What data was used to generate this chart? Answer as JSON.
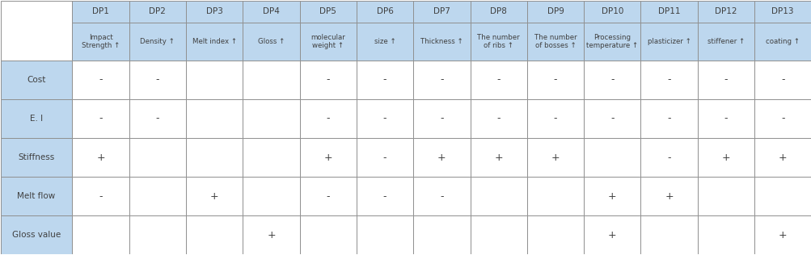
{
  "col_headers_row1": [
    "DP1",
    "DP2",
    "DP3",
    "DP4",
    "DP5",
    "DP6",
    "DP7",
    "DP8",
    "DP9",
    "DP10",
    "DP11",
    "DP12",
    "DP13"
  ],
  "col_headers_row2": [
    "Impact\nStrength ↑",
    "Density ↑",
    "Melt index ↑",
    "Gloss ↑",
    "molecular\nweight ↑",
    "size ↑",
    "Thickness ↑",
    "The number\nof ribs ↑",
    "The number\nof bosses ↑",
    "Processing\ntemperature ↑",
    "plasticizer ↑",
    "stiffener ↑",
    "coating ↑"
  ],
  "row_headers": [
    "Cost",
    "E. I",
    "Stiffness",
    "Melt flow",
    "Gloss value"
  ],
  "cell_data": [
    [
      "-",
      "-",
      "",
      "",
      "-",
      "-",
      "-",
      "-",
      "-",
      "-",
      "-",
      "-",
      "-"
    ],
    [
      "-",
      "-",
      "",
      "",
      "-",
      "-",
      "-",
      "-",
      "-",
      "-",
      "-",
      "-",
      "-"
    ],
    [
      "+",
      "",
      "",
      "",
      "+",
      "-",
      "+",
      "+",
      "+",
      "",
      "-",
      "+",
      "+"
    ],
    [
      "-",
      "",
      "+",
      "",
      "-",
      "-",
      "-",
      "",
      "",
      "+",
      "+",
      "",
      ""
    ],
    [
      "",
      "",
      "",
      "+",
      "",
      "",
      "",
      "",
      "",
      "+",
      "",
      "",
      "+"
    ]
  ],
  "header_bg": "#bdd7ee",
  "row_header_bg": "#bdd7ee",
  "cell_bg_white": "#ffffff",
  "border_color": "#909090",
  "text_color": "#404040",
  "fig_width": 10.04,
  "fig_height": 3.16
}
